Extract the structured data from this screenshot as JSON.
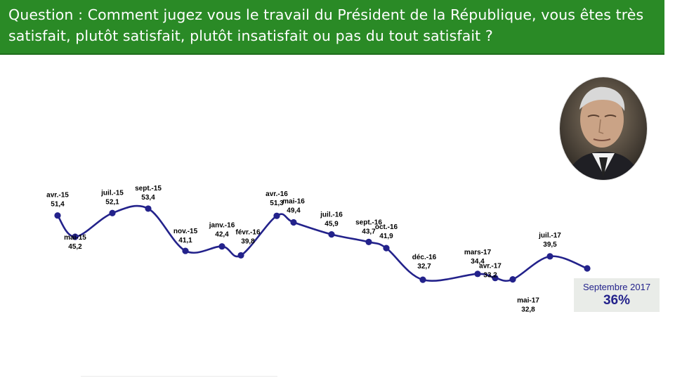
{
  "header": {
    "question": "Question : Comment jugez vous le travail du Président de la République, vous êtes très satisfait, plutôt satisfait, plutôt insatisfait ou pas du tout satisfait ?"
  },
  "highlight": {
    "label": "Septembre 2017",
    "value": "36%"
  },
  "colors": {
    "header_bg": "#2a8a26",
    "line": "#23228b",
    "highlight_bg": "#e9ece8"
  },
  "chart_data": {
    "type": "line",
    "series": [
      {
        "points": [
          {
            "label": "avr.-15",
            "value": 51.4,
            "display": "51,4"
          },
          {
            "label": "mai-15",
            "value": 45.2,
            "display": "45,2"
          },
          {
            "label": "juil.-15",
            "value": 52.1,
            "display": "52,1"
          },
          {
            "label": "sept.-15",
            "value": 53.4,
            "display": "53,4"
          },
          {
            "label": "nov.-15",
            "value": 41.1,
            "display": "41,1"
          },
          {
            "label": "janv.-16",
            "value": 42.4,
            "display": "42,4"
          },
          {
            "label": "févr.-16",
            "value": 39.8,
            "display": "39,8"
          },
          {
            "label": "avr.-16",
            "value": 51.3,
            "display": "51,3"
          },
          {
            "label": "mai-16",
            "value": 49.4,
            "display": "49,4"
          },
          {
            "label": "juil.-16",
            "value": 45.9,
            "display": "45,9"
          },
          {
            "label": "sept.-16",
            "value": 43.7,
            "display": "43,7"
          },
          {
            "label": "oct.-16",
            "value": 41.9,
            "display": "41,9"
          },
          {
            "label": "déc.-16",
            "value": 32.7,
            "display": "32,7"
          },
          {
            "label": "mars-17",
            "value": 34.4,
            "display": "34,4"
          },
          {
            "label": "avr.-17",
            "value": 33.2,
            "display": "33,2"
          },
          {
            "label": "mai-17",
            "value": 32.8,
            "display": "32,8"
          },
          {
            "label": "juil.-17",
            "value": 39.5,
            "display": "39,5"
          },
          {
            "label": "Septembre 2017",
            "value": 36
          }
        ]
      }
    ]
  }
}
